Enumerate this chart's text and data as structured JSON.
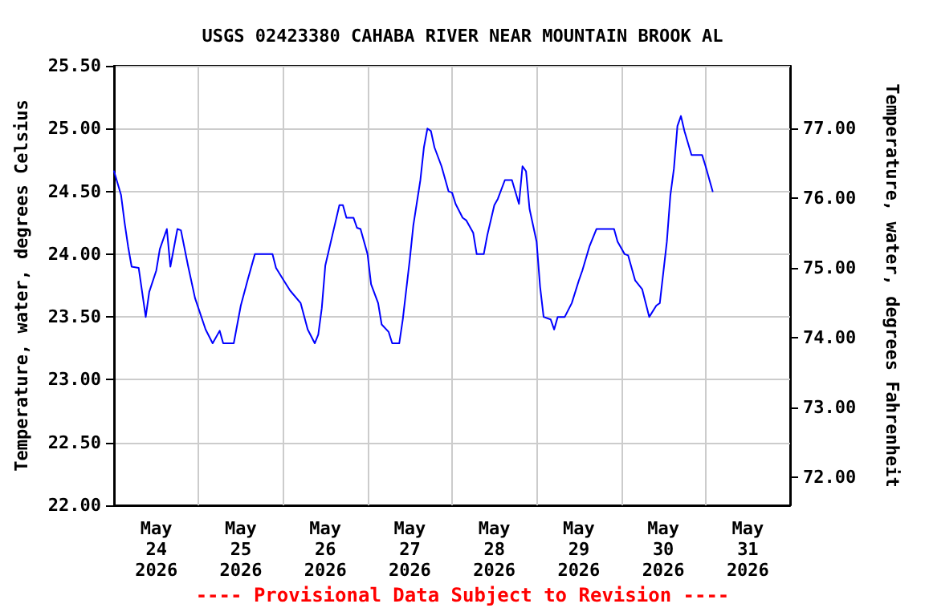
{
  "chart_data": {
    "type": "line",
    "title": "USGS 02423380 CAHABA RIVER NEAR MOUNTAIN BROOK AL",
    "ylabel": "Temperature, water, degrees Celsius",
    "y2label": "Temperature, water, degrees Fahrenheit",
    "annotations": [
      "---- Provisional Data Subject to Revision ----"
    ],
    "x": [
      "2026-05-24T00:00",
      "2026-05-24T02:00",
      "2026-05-24T03:00",
      "2026-05-24T04:00",
      "2026-05-24T05:00",
      "2026-05-24T07:00",
      "2026-05-24T09:00",
      "2026-05-24T10:00",
      "2026-05-24T12:00",
      "2026-05-24T13:00",
      "2026-05-24T15:00",
      "2026-05-24T16:00",
      "2026-05-24T18:00",
      "2026-05-24T19:00",
      "2026-05-24T21:00",
      "2026-05-24T23:00",
      "2026-05-25T02:00",
      "2026-05-25T04:00",
      "2026-05-25T06:00",
      "2026-05-25T07:00",
      "2026-05-25T10:00",
      "2026-05-25T12:00",
      "2026-05-25T14:00",
      "2026-05-25T16:00",
      "2026-05-25T21:00",
      "2026-05-25T22:00",
      "2026-05-26T00:00",
      "2026-05-26T02:00",
      "2026-05-26T05:00",
      "2026-05-26T07:00",
      "2026-05-26T09:00",
      "2026-05-26T10:00",
      "2026-05-26T11:00",
      "2026-05-26T12:00",
      "2026-05-26T14:00",
      "2026-05-26T16:00",
      "2026-05-26T17:00",
      "2026-05-26T18:00",
      "2026-05-26T20:00",
      "2026-05-26T21:00",
      "2026-05-26T22:00",
      "2026-05-27T00:00",
      "2026-05-27T01:00",
      "2026-05-27T03:00",
      "2026-05-27T04:00",
      "2026-05-27T06:00",
      "2026-05-27T07:00",
      "2026-05-27T09:00",
      "2026-05-27T10:00",
      "2026-05-27T12:00",
      "2026-05-27T13:00",
      "2026-05-27T15:00",
      "2026-05-27T16:00",
      "2026-05-27T17:00",
      "2026-05-27T18:00",
      "2026-05-27T19:00",
      "2026-05-27T21:00",
      "2026-05-27T23:00",
      "2026-05-28T00:00",
      "2026-05-28T01:00",
      "2026-05-28T03:00",
      "2026-05-28T04:00",
      "2026-05-28T06:00",
      "2026-05-28T07:00",
      "2026-05-28T09:00",
      "2026-05-28T10:00",
      "2026-05-28T12:00",
      "2026-05-28T13:00",
      "2026-05-28T15:00",
      "2026-05-28T17:00",
      "2026-05-28T19:00",
      "2026-05-28T20:00",
      "2026-05-28T21:00",
      "2026-05-28T22:00",
      "2026-05-29T00:00",
      "2026-05-29T01:00",
      "2026-05-29T02:00",
      "2026-05-29T04:00",
      "2026-05-29T05:00",
      "2026-05-29T06:00",
      "2026-05-29T08:00",
      "2026-05-29T10:00",
      "2026-05-29T12:00",
      "2026-05-29T13:00",
      "2026-05-29T15:00",
      "2026-05-29T17:00",
      "2026-05-29T22:00",
      "2026-05-29T23:00",
      "2026-05-30T01:00",
      "2026-05-30T02:00",
      "2026-05-30T04:00",
      "2026-05-30T06:00",
      "2026-05-30T07:00",
      "2026-05-30T08:00",
      "2026-05-30T10:00",
      "2026-05-30T11:00",
      "2026-05-30T13:00",
      "2026-05-30T14:00",
      "2026-05-30T15:00",
      "2026-05-30T16:00",
      "2026-05-30T17:00",
      "2026-05-30T18:00",
      "2026-05-30T20:00",
      "2026-05-30T23:00",
      "2026-05-31T00:00",
      "2026-05-31T02:00"
    ],
    "series": [
      {
        "color": "#0000ff",
        "values": [
          24.66,
          24.47,
          24.25,
          24.06,
          23.9,
          23.89,
          23.5,
          23.7,
          23.87,
          24.04,
          24.2,
          23.9,
          24.2,
          24.19,
          23.91,
          23.65,
          23.4,
          23.29,
          23.39,
          23.29,
          23.29,
          23.59,
          23.8,
          24.0,
          24.0,
          23.89,
          23.8,
          23.71,
          23.61,
          23.4,
          23.29,
          23.36,
          23.57,
          23.91,
          24.15,
          24.39,
          24.39,
          24.29,
          24.29,
          24.21,
          24.2,
          24.0,
          23.76,
          23.61,
          23.44,
          23.38,
          23.29,
          23.29,
          23.48,
          23.96,
          24.23,
          24.59,
          24.85,
          25.0,
          24.98,
          24.85,
          24.7,
          24.5,
          24.49,
          24.4,
          24.29,
          24.27,
          24.17,
          24.0,
          24.0,
          24.15,
          24.39,
          24.44,
          24.59,
          24.59,
          24.4,
          24.7,
          24.66,
          24.36,
          24.1,
          23.74,
          23.5,
          23.48,
          23.4,
          23.5,
          23.5,
          23.61,
          23.79,
          23.87,
          24.06,
          24.2,
          24.2,
          24.1,
          24.0,
          23.99,
          23.79,
          23.72,
          23.61,
          23.5,
          23.59,
          23.61,
          24.1,
          24.47,
          24.68,
          25.02,
          25.1,
          24.98,
          24.79,
          24.79,
          24.7,
          24.5
        ]
      }
    ],
    "xlim": [
      "2026-05-24T00:00",
      "2026-06-01T00:00"
    ],
    "xticks": [
      {
        "value": "2026-05-24T12:00",
        "label": "May\n24\n2026"
      },
      {
        "value": "2026-05-25T00:00",
        "label": null
      },
      {
        "value": "2026-05-25T12:00",
        "label": "May\n25\n2026"
      },
      {
        "value": "2026-05-26T00:00",
        "label": null
      },
      {
        "value": "2026-05-26T12:00",
        "label": "May\n26\n2026"
      },
      {
        "value": "2026-05-27T00:00",
        "label": null
      },
      {
        "value": "2026-05-27T12:00",
        "label": "May\n27\n2026"
      },
      {
        "value": "2026-05-28T00:00",
        "label": null
      },
      {
        "value": "2026-05-28T12:00",
        "label": "May\n28\n2026"
      },
      {
        "value": "2026-05-29T00:00",
        "label": null
      },
      {
        "value": "2026-05-29T12:00",
        "label": "May\n29\n2026"
      },
      {
        "value": "2026-05-30T00:00",
        "label": null
      },
      {
        "value": "2026-05-30T12:00",
        "label": "May\n30\n2026"
      },
      {
        "value": "2026-05-31T00:00",
        "label": null
      },
      {
        "value": "2026-05-31T12:00",
        "label": "May\n31\n2026"
      }
    ],
    "ylim": [
      22.0,
      25.5
    ],
    "yticks": [
      {
        "value": 22.0,
        "label": "22.00"
      },
      {
        "value": 22.5,
        "label": "22.50"
      },
      {
        "value": 23.0,
        "label": "23.00"
      },
      {
        "value": 23.5,
        "label": "23.50"
      },
      {
        "value": 24.0,
        "label": "24.00"
      },
      {
        "value": 24.5,
        "label": "24.50"
      },
      {
        "value": 25.0,
        "label": "25.00"
      },
      {
        "value": 25.5,
        "label": "25.50"
      }
    ],
    "y2lim": [
      71.6,
      77.9
    ],
    "y2ticks": [
      {
        "value": 72,
        "label": "72.00"
      },
      {
        "value": 73,
        "label": "73.00"
      },
      {
        "value": 74,
        "label": "74.00"
      },
      {
        "value": 75,
        "label": "75.00"
      },
      {
        "value": 76,
        "label": "76.00"
      },
      {
        "value": 77,
        "label": "77.00"
      }
    ],
    "grid": true,
    "marker": "none",
    "line_style": "solid"
  }
}
